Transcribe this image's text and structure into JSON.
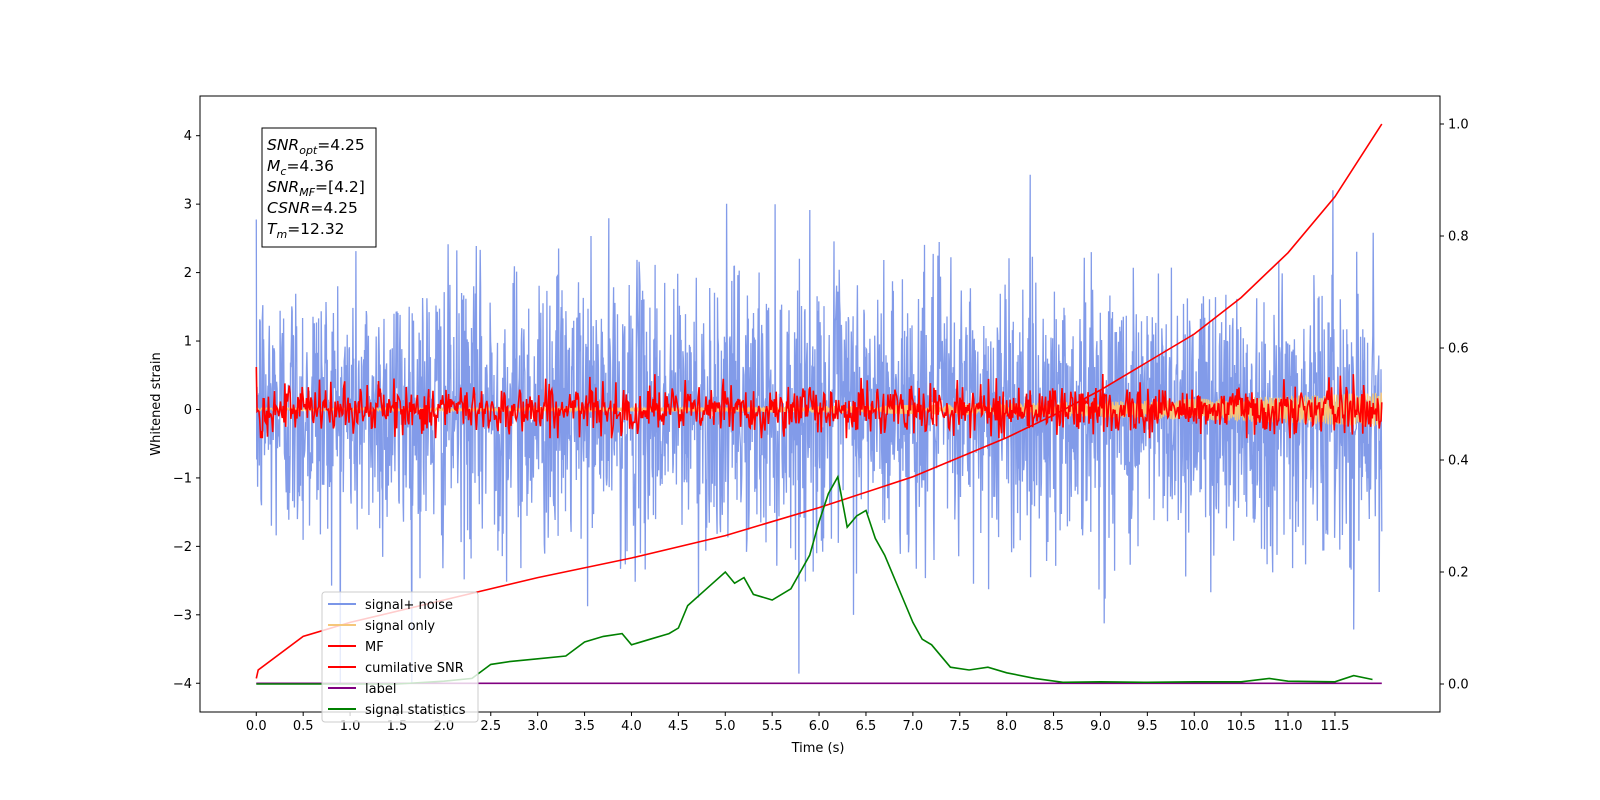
{
  "chart_data": {
    "type": "line",
    "xlabel": "Time (s)",
    "ylabel": "Whitened strain",
    "xlim": [
      -0.6,
      12.62
    ],
    "ylim": [
      -4.42,
      4.58
    ],
    "y2lim": [
      -0.05,
      1.05
    ],
    "grid": false,
    "legend_position": "lower-left",
    "xticks": [
      0.0,
      0.5,
      1.0,
      1.5,
      2.0,
      2.5,
      3.0,
      3.5,
      4.0,
      4.5,
      5.0,
      5.5,
      6.0,
      6.5,
      7.0,
      7.5,
      8.0,
      8.5,
      9.0,
      9.5,
      10.0,
      10.5,
      11.0,
      11.5
    ],
    "xtick_labels": [
      "0.0",
      "0.5",
      "1.0",
      "1.5",
      "2.0",
      "2.5",
      "3.0",
      "3.5",
      "4.0",
      "4.5",
      "5.0",
      "5.5",
      "6.0",
      "6.5",
      "7.0",
      "7.5",
      "8.0",
      "8.5",
      "9.0",
      "9.5",
      "10.0",
      "10.5",
      "11.0",
      "11.5"
    ],
    "yticks": [
      -4,
      -3,
      -2,
      -1,
      0,
      1,
      2,
      3,
      4
    ],
    "ytick_labels": [
      "−4",
      "−3",
      "−2",
      "−1",
      "0",
      "1",
      "2",
      "3",
      "4"
    ],
    "y2ticks": [
      0.0,
      0.2,
      0.4,
      0.6,
      0.8,
      1.0
    ],
    "y2tick_labels": [
      "0.0",
      "0.2",
      "0.4",
      "0.6",
      "0.8",
      "1.0"
    ],
    "annotation": {
      "lines": [
        {
          "sym": "SNR",
          "sub": "opt",
          "val": "=4.25"
        },
        {
          "sym": "M",
          "sub": "c",
          "val": "=4.36"
        },
        {
          "sym": "SNR",
          "sub": "MF",
          "val": "=[4.2]"
        },
        {
          "sym": "CSNR",
          "sub": "",
          "val": "=4.25"
        },
        {
          "sym": "T",
          "sub": "m",
          "val": "=12.32"
        }
      ]
    },
    "series": [
      {
        "name": "signal+ noise",
        "color": "#7b96e8",
        "axis": "left",
        "kind": "noise",
        "t_range": [
          0.0,
          12.0
        ],
        "y_range": [
          -4.0,
          4.18
        ],
        "approx_std": 1.0
      },
      {
        "name": "signal only",
        "color": "#f5c77a",
        "axis": "left",
        "kind": "chirp",
        "t_range": [
          0.0,
          12.0
        ],
        "amplitude_start": 0.02,
        "amplitude_end": 0.25
      },
      {
        "name": "MF",
        "color": "#ff0000",
        "axis": "left",
        "kind": "noise",
        "t_range": [
          0.0,
          12.0
        ],
        "y_range": [
          -0.42,
          1.0
        ],
        "approx_std": 0.18
      },
      {
        "name": "cumilative SNR",
        "color": "#ff0000",
        "axis": "right",
        "x": [
          0.0,
          0.02,
          0.5,
          1.0,
          2.0,
          3.0,
          4.0,
          5.0,
          6.0,
          7.0,
          8.0,
          8.5,
          9.0,
          9.5,
          10.0,
          10.5,
          11.0,
          11.5,
          12.0
        ],
        "y": [
          0.01,
          0.025,
          0.085,
          0.11,
          0.15,
          0.19,
          0.225,
          0.265,
          0.315,
          0.37,
          0.44,
          0.48,
          0.525,
          0.575,
          0.625,
          0.69,
          0.77,
          0.87,
          1.0
        ]
      },
      {
        "name": "label",
        "color": "#800080",
        "axis": "left",
        "x": [
          0.0,
          12.0
        ],
        "y": [
          -4.0,
          -4.0
        ]
      },
      {
        "name": "signal statistics",
        "color": "#008000",
        "axis": "right",
        "x": [
          0.0,
          0.5,
          1.0,
          1.5,
          2.0,
          2.3,
          2.5,
          2.7,
          3.0,
          3.3,
          3.5,
          3.7,
          3.9,
          4.0,
          4.2,
          4.4,
          4.5,
          4.6,
          4.8,
          5.0,
          5.1,
          5.2,
          5.3,
          5.5,
          5.7,
          5.8,
          5.9,
          6.0,
          6.1,
          6.2,
          6.3,
          6.4,
          6.5,
          6.6,
          6.7,
          6.9,
          7.0,
          7.1,
          7.2,
          7.4,
          7.6,
          7.8,
          8.0,
          8.3,
          8.6,
          9.0,
          9.5,
          10.0,
          10.5,
          10.8,
          11.0,
          11.5,
          11.7,
          11.9
        ],
        "y": [
          0.0,
          0.0,
          0.0,
          0.0,
          0.005,
          0.01,
          0.035,
          0.04,
          0.045,
          0.05,
          0.075,
          0.085,
          0.09,
          0.07,
          0.08,
          0.09,
          0.1,
          0.14,
          0.17,
          0.2,
          0.18,
          0.19,
          0.16,
          0.15,
          0.17,
          0.2,
          0.23,
          0.29,
          0.34,
          0.37,
          0.28,
          0.3,
          0.31,
          0.26,
          0.23,
          0.15,
          0.11,
          0.08,
          0.07,
          0.03,
          0.025,
          0.03,
          0.02,
          0.01,
          0.003,
          0.004,
          0.003,
          0.004,
          0.004,
          0.01,
          0.005,
          0.004,
          0.015,
          0.008
        ]
      }
    ]
  }
}
